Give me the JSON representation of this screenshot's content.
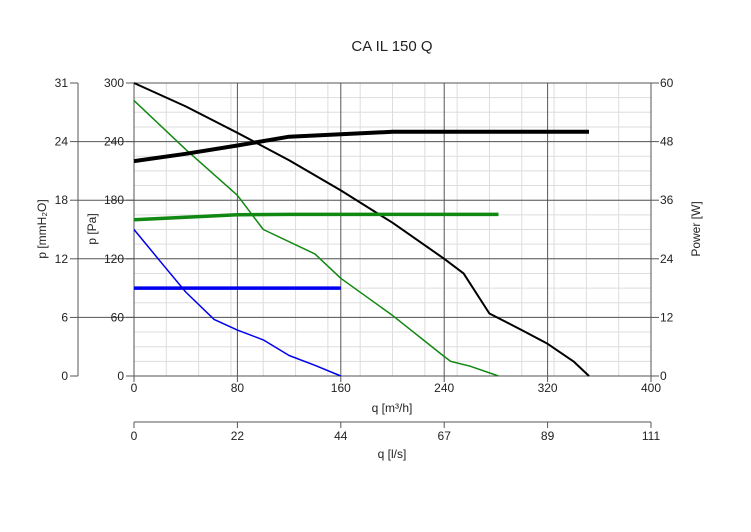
{
  "chart_data": {
    "type": "line",
    "title": "CA IL 150 Q",
    "xlabel": "q [m³/h]",
    "x2label": "q [l/s]",
    "ylabel_left_outer": "p [mmH₂O]",
    "ylabel_left_inner": "p [Pa]",
    "ylabel_right": "Power [W]",
    "xlim": [
      0,
      400
    ],
    "x_ticks": [
      "0",
      "80",
      "160",
      "240",
      "320",
      "400"
    ],
    "x2_ticks": [
      "0",
      "22",
      "44",
      "67",
      "89",
      "111"
    ],
    "ylim_pa": [
      0,
      300
    ],
    "y_ticks_pa": [
      "0",
      "60",
      "120",
      "180",
      "240",
      "300"
    ],
    "y_ticks_mmh2o": [
      "0",
      "6",
      "12",
      "18",
      "24",
      "31"
    ],
    "ylim_power": [
      0,
      60
    ],
    "y_ticks_power": [
      "0",
      "12",
      "24",
      "36",
      "48",
      "60"
    ],
    "grid": true,
    "series": [
      {
        "axis": "pressure",
        "color": "#000000",
        "points": [
          [
            0,
            300
          ],
          [
            40,
            276
          ],
          [
            80,
            249
          ],
          [
            120,
            221
          ],
          [
            160,
            190
          ],
          [
            200,
            157
          ],
          [
            240,
            120
          ],
          [
            255,
            105
          ],
          [
            275,
            64
          ],
          [
            300,
            47
          ],
          [
            320,
            33
          ],
          [
            340,
            15
          ],
          [
            352,
            0
          ]
        ]
      },
      {
        "axis": "pressure",
        "color": "#118811",
        "points": [
          [
            0,
            282
          ],
          [
            40,
            232
          ],
          [
            80,
            185
          ],
          [
            100,
            150
          ],
          [
            140,
            125
          ],
          [
            160,
            100
          ],
          [
            200,
            62
          ],
          [
            240,
            20
          ],
          [
            245,
            15
          ],
          [
            260,
            10
          ],
          [
            282,
            0
          ]
        ]
      },
      {
        "axis": "pressure",
        "color": "#0000ee",
        "points": [
          [
            0,
            150
          ],
          [
            20,
            118
          ],
          [
            40,
            86
          ],
          [
            62,
            58
          ],
          [
            80,
            47
          ],
          [
            100,
            37
          ],
          [
            120,
            21
          ],
          [
            140,
            11
          ],
          [
            160,
            0
          ]
        ]
      },
      {
        "axis": "power",
        "color": "#000000",
        "points": [
          [
            0,
            44
          ],
          [
            40,
            45.5
          ],
          [
            80,
            47.2
          ],
          [
            120,
            49
          ],
          [
            160,
            49.5
          ],
          [
            200,
            50
          ],
          [
            260,
            50
          ],
          [
            352,
            50
          ]
        ]
      },
      {
        "axis": "power",
        "color": "#118811",
        "points": [
          [
            0,
            32
          ],
          [
            40,
            32.5
          ],
          [
            80,
            33
          ],
          [
            120,
            33.1
          ],
          [
            200,
            33.1
          ],
          [
            282,
            33.1
          ]
        ]
      },
      {
        "axis": "power",
        "color": "#0000ee",
        "points": [
          [
            0,
            18
          ],
          [
            160,
            18
          ]
        ]
      }
    ]
  }
}
